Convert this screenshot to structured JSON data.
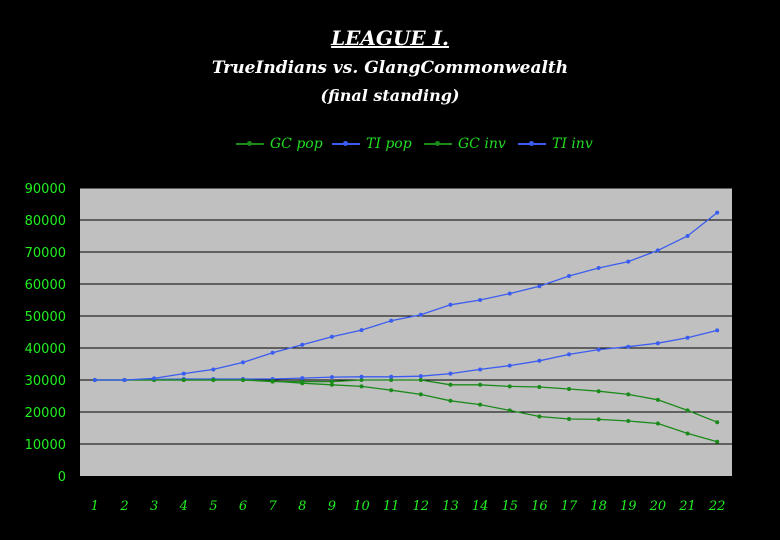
{
  "title": "LEAGUE I.",
  "subtitle": "TrueIndians vs. GlangCommonwealth",
  "subtitle2": "(final standing)",
  "colors": {
    "background": "#000000",
    "plot_bg": "#c0c0c0",
    "green": "#1a8a1a",
    "blue": "#3a5cf0",
    "legend_text": "#22dd22",
    "axis_text": "#22ee22"
  },
  "chart_data": {
    "type": "line",
    "x": [
      1,
      2,
      3,
      4,
      5,
      6,
      7,
      8,
      9,
      10,
      11,
      12,
      13,
      14,
      15,
      16,
      17,
      18,
      19,
      20,
      21,
      22
    ],
    "ylim": [
      0,
      90000
    ],
    "yticks": [
      0,
      10000,
      20000,
      30000,
      40000,
      50000,
      60000,
      70000,
      80000,
      90000
    ],
    "grid": true,
    "legend_position": "top",
    "series": [
      {
        "name": "GC pop",
        "color": "#1a8a1a",
        "values": [
          30000,
          30000,
          30000,
          30000,
          30000,
          30000,
          29500,
          29500,
          29500,
          30000,
          30000,
          30000,
          28500,
          28500,
          28000,
          27800,
          27200,
          26500,
          25500,
          23800,
          20500,
          16800
        ]
      },
      {
        "name": "TI pop",
        "color": "#3a5cf0",
        "values": [
          30000,
          30000,
          30200,
          30300,
          30300,
          30300,
          30300,
          30600,
          30900,
          31000,
          31000,
          31200,
          32000,
          33300,
          34500,
          36000,
          38000,
          39500,
          40400,
          41500,
          43200,
          45500
        ]
      },
      {
        "name": "GC inv",
        "color": "#1a8a1a",
        "values": [
          30000,
          30000,
          30000,
          30000,
          30000,
          30000,
          29700,
          29000,
          28500,
          28000,
          26800,
          25500,
          23500,
          22300,
          20500,
          18600,
          17800,
          17700,
          17200,
          16400,
          13300,
          10700
        ]
      },
      {
        "name": "TI inv",
        "color": "#3a5cf0",
        "values": [
          30000,
          30000,
          30500,
          32000,
          33300,
          35500,
          38500,
          41000,
          43500,
          45600,
          48500,
          50400,
          53500,
          55000,
          57000,
          59300,
          62500,
          65000,
          67000,
          70500,
          75000,
          82300
        ]
      }
    ]
  }
}
